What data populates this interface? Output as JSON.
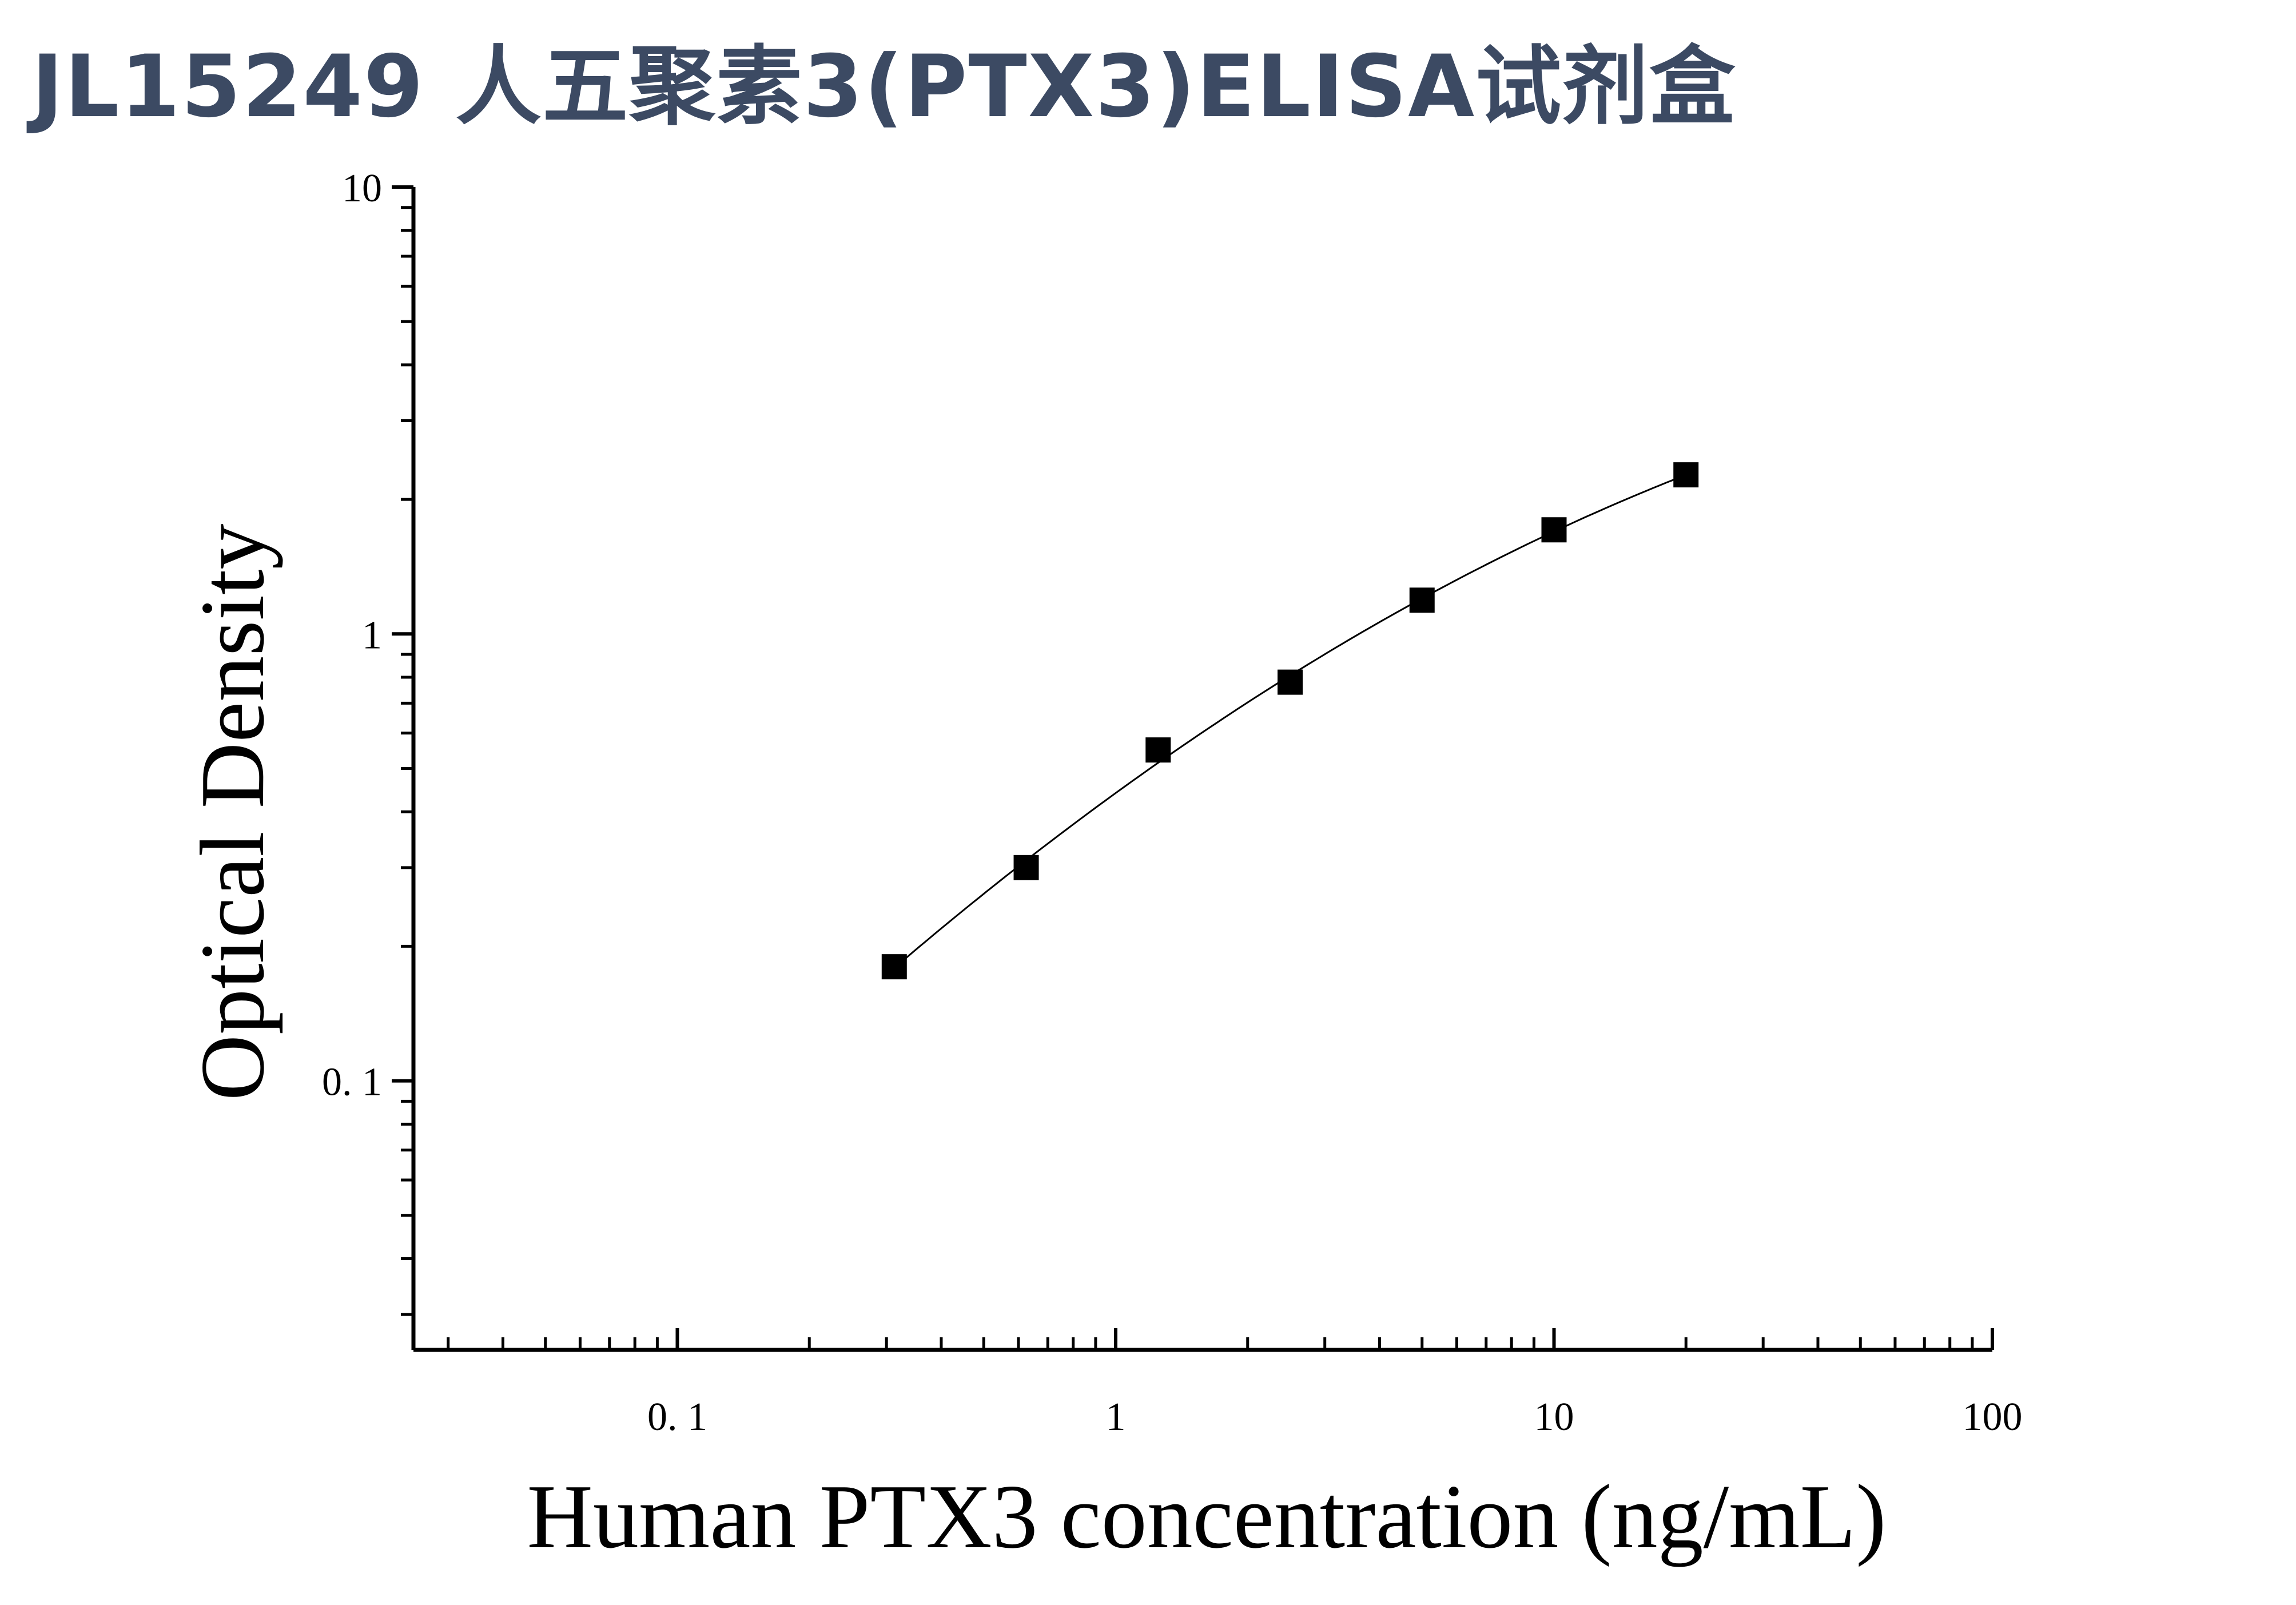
{
  "title": "JL15249 人五聚素3(PTX3)ELISA试剂盒",
  "chart_data": {
    "type": "scatter",
    "xlabel": "Human PTX3 concentration (ng/mL)",
    "ylabel": "Optical Density",
    "x_scale": "log",
    "y_scale": "log",
    "xlim": [
      0.025,
      100
    ],
    "ylim": [
      0.025,
      10
    ],
    "x_ticks": [
      {
        "value": 0.1,
        "label": "0. 1"
      },
      {
        "value": 1,
        "label": "1"
      },
      {
        "value": 10,
        "label": "10"
      },
      {
        "value": 100,
        "label": "100"
      }
    ],
    "y_ticks": [
      {
        "value": 0.1,
        "label": "0. 1"
      },
      {
        "value": 1,
        "label": "1"
      },
      {
        "value": 10,
        "label": "10"
      }
    ],
    "series": [
      {
        "marker": "square",
        "color": "#000000",
        "fit_line": true,
        "x": [
          0.3125,
          0.625,
          1.25,
          2.5,
          5,
          10,
          20
        ],
        "y": [
          0.18,
          0.3,
          0.55,
          0.78,
          1.19,
          1.71,
          2.27
        ]
      }
    ],
    "grid": false,
    "legend": false
  }
}
